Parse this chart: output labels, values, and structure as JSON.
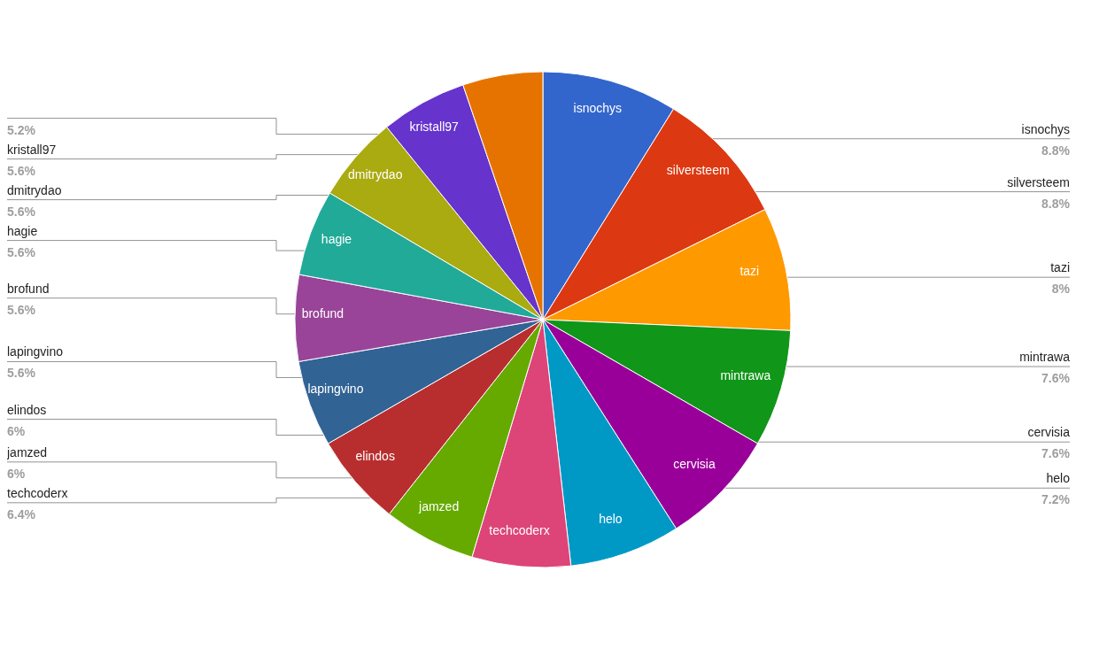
{
  "chart_data": {
    "type": "pie",
    "categories": [
      "isnochys",
      "silversteem",
      "tazi",
      "mintrawa",
      "cervisia",
      "helo",
      "techcoderx",
      "jamzed",
      "elindos",
      "lapingvino",
      "brofund",
      "hagie",
      "dmitrydao",
      "kristall97",
      null
    ],
    "values": [
      8.8,
      8.8,
      8,
      7.6,
      7.6,
      7.2,
      6.4,
      6,
      6,
      5.6,
      5.6,
      5.6,
      5.6,
      5.6,
      5.2
    ],
    "value_labels": [
      "8.8%",
      "8.8%",
      "8%",
      "7.6%",
      "7.6%",
      "7.2%",
      "6.4%",
      "6%",
      "6%",
      "5.6%",
      "5.6%",
      "5.6%",
      "5.6%",
      "5.6%",
      "5.2%"
    ],
    "colors": [
      "#3366cc",
      "#dc3912",
      "#ff9900",
      "#109618",
      "#990099",
      "#0099c6",
      "#dd4477",
      "#66aa00",
      "#b82e2e",
      "#316395",
      "#994499",
      "#22aa99",
      "#aaaa11",
      "#6633cc",
      "#e67300"
    ]
  }
}
